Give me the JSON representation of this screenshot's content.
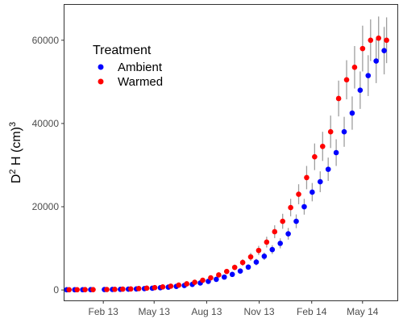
{
  "chart_data": {
    "type": "scatter",
    "title": "",
    "xlabel": "",
    "ylabel": "D² H (cm)³",
    "ylabel_parts": {
      "d": "D",
      "sup2": "2",
      "h": " H (cm)",
      "sup3": "3"
    },
    "x_ticks": [
      "Feb 13",
      "May 13",
      "Aug 13",
      "Nov 13",
      "Feb 14",
      "May 14"
    ],
    "y_ticks": [
      "0",
      "20000",
      "40000",
      "60000"
    ],
    "xlim": [
      "2012-11-25",
      "2014-07-01"
    ],
    "ylim": [
      -2500,
      68500
    ],
    "grid": false,
    "error_bars": true,
    "legend": {
      "title": "Treatment",
      "placement": "top-left"
    },
    "x": [
      "2012-12-01",
      "2012-12-15",
      "2012-12-29",
      "2013-01-12",
      "2013-02-05",
      "2013-02-19",
      "2013-03-05",
      "2013-03-19",
      "2013-04-02",
      "2013-04-16",
      "2013-04-30",
      "2013-05-14",
      "2013-05-28",
      "2013-06-11",
      "2013-06-25",
      "2013-07-09",
      "2013-07-23",
      "2013-08-06",
      "2013-08-20",
      "2013-09-03",
      "2013-09-17",
      "2013-10-01",
      "2013-10-15",
      "2013-10-29",
      "2013-11-12",
      "2013-11-26",
      "2013-12-10",
      "2013-12-24",
      "2014-01-07",
      "2014-01-21",
      "2014-02-04",
      "2014-02-18",
      "2014-03-04",
      "2014-03-18",
      "2014-04-01",
      "2014-04-15",
      "2014-04-29",
      "2014-05-13",
      "2014-05-27",
      "2014-06-10"
    ],
    "series": [
      {
        "name": "Ambient",
        "color": "#0000ff",
        "values": [
          50,
          60,
          70,
          80,
          100,
          130,
          160,
          200,
          260,
          330,
          420,
          540,
          680,
          860,
          1080,
          1350,
          1680,
          2080,
          2560,
          3100,
          3750,
          4550,
          5500,
          6700,
          8100,
          9700,
          11200,
          13500,
          16500,
          20000,
          23500,
          26000,
          29000,
          33000,
          38000,
          42500,
          48000,
          51500,
          55000,
          57500
        ],
        "errors": [
          10,
          10,
          10,
          10,
          15,
          20,
          25,
          30,
          40,
          50,
          60,
          80,
          100,
          120,
          150,
          180,
          220,
          270,
          330,
          400,
          470,
          560,
          660,
          780,
          900,
          1050,
          1200,
          1400,
          1650,
          1900,
          2200,
          2500,
          2800,
          3200,
          3600,
          4000,
          4500,
          4900,
          5300,
          5700
        ]
      },
      {
        "name": "Warmed",
        "color": "#ff0000",
        "values": [
          60,
          70,
          80,
          90,
          120,
          160,
          200,
          260,
          340,
          440,
          570,
          730,
          920,
          1170,
          1480,
          1860,
          2340,
          2920,
          3620,
          4450,
          5430,
          6600,
          7950,
          9500,
          11500,
          14000,
          16500,
          19800,
          23000,
          27000,
          32000,
          34500,
          38000,
          46000,
          50500,
          53500,
          58000,
          60000,
          60500,
          60000
        ],
        "errors": [
          10,
          10,
          10,
          12,
          18,
          25,
          30,
          40,
          50,
          65,
          80,
          100,
          125,
          160,
          200,
          250,
          300,
          380,
          460,
          560,
          680,
          800,
          950,
          1100,
          1300,
          1550,
          1800,
          2100,
          2400,
          2800,
          3200,
          3500,
          3900,
          4300,
          4700,
          5100,
          5500,
          5000,
          5200,
          5500
        ]
      }
    ]
  }
}
